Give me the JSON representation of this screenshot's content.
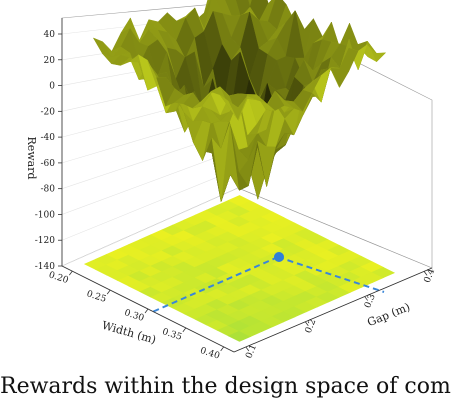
{
  "chart_data": {
    "type": "surface3d",
    "title": "",
    "xlabel": "Width (m)",
    "ylabel": "Gap (m)",
    "zlabel": "Reward",
    "x_ticks": [
      "0.20",
      "0.25",
      "0.30",
      "0.35",
      "0.40"
    ],
    "y_ticks": [
      "0.4",
      "0.3",
      "0.2",
      "0.1"
    ],
    "z_ticks": [
      40,
      20,
      0,
      -20,
      -40,
      -60,
      -80,
      -100,
      -120,
      -140
    ],
    "zlim": [
      -150,
      45
    ],
    "surface_color": "#a4b01e",
    "heatmap_color_low": "#f2f21e",
    "heatmap_color_high": "#a8e03a",
    "optimum": {
      "width": 0.3,
      "gap": 0.3
    },
    "marker_color": "#2f7fd8"
  },
  "caption": "Rewards within the design space of com"
}
